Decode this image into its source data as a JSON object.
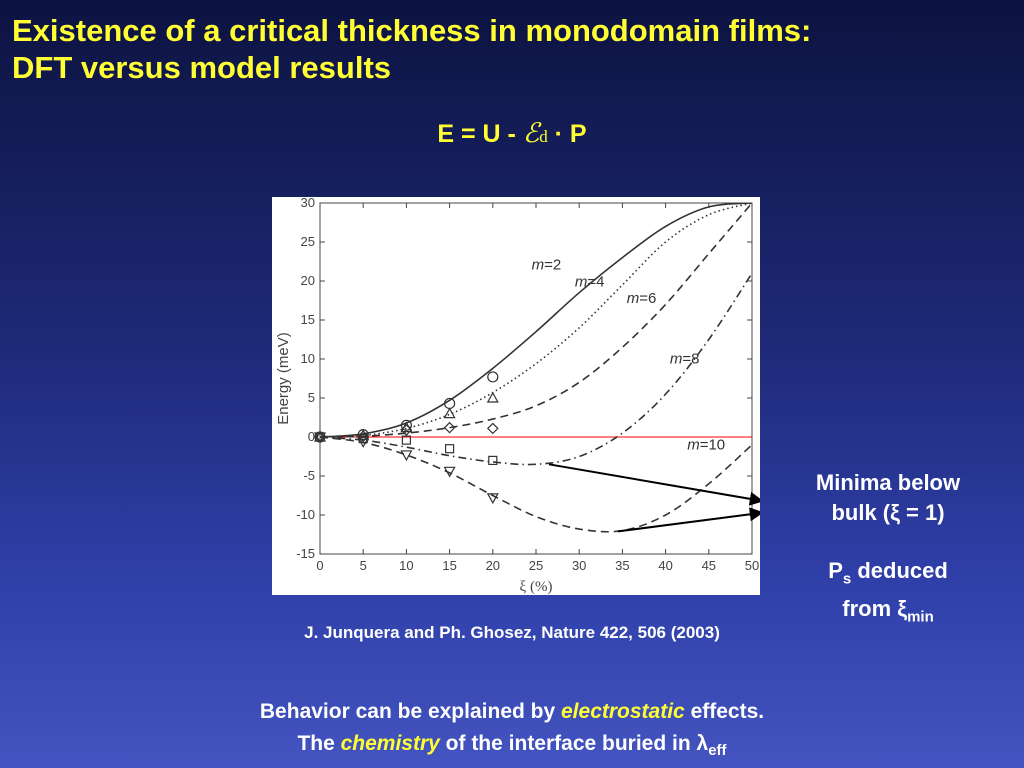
{
  "slide": {
    "title_line1": "Existence of a critical thickness in monodomain films:",
    "title_line2": "DFT versus model results",
    "formula_left": "E = U - ",
    "formula_field": "ℰ",
    "formula_field_sub": "d",
    "formula_right": " · P",
    "annotation_line1": "Minima below",
    "annotation_line2": "bulk (ξ = 1)",
    "ps_prefix": "P",
    "ps_sub": "s",
    "ps_rest": " deduced",
    "from_prefix": "from ξ",
    "from_sub": "min",
    "citation": "J. Junquera and Ph. Ghosez, Nature 422, 506 (2003)",
    "bottom1_pre": "Behavior can be explained by ",
    "bottom1_em": "electrostatic",
    "bottom1_post": " effects.",
    "bottom2_pre": "The ",
    "bottom2_em": "chemistry",
    "bottom2_post": " of the interface buried in λ",
    "bottom2_sub": "eff"
  },
  "colors": {
    "title": "#ffff33",
    "body_text": "#ffffff",
    "zero_line": "#ff0000",
    "curves": "#333333",
    "arrows": "#000000"
  },
  "chart_data": {
    "type": "line",
    "xlabel": "ξ (%)",
    "ylabel": "Energy (meV)",
    "xlim": [
      0,
      50
    ],
    "ylim": [
      -15,
      30
    ],
    "xticks": [
      0,
      5,
      10,
      15,
      20,
      25,
      30,
      35,
      40,
      45,
      50
    ],
    "yticks": [
      -15,
      -10,
      -5,
      0,
      5,
      10,
      15,
      20,
      25,
      30
    ],
    "reference_line_y": 0,
    "series": [
      {
        "name": "m=2",
        "style": "solid",
        "marker": "circle",
        "x": [
          0,
          5,
          10,
          15,
          20,
          25,
          30,
          35,
          40,
          45,
          50
        ],
        "y": [
          0,
          0.4,
          1.8,
          4.7,
          8.8,
          13.5,
          18.5,
          23.0,
          27.0,
          29.5,
          30.0
        ]
      },
      {
        "name": "m=4",
        "style": "dotted",
        "marker": "triangle-up",
        "x": [
          0,
          5,
          10,
          15,
          20,
          25,
          30,
          35,
          40,
          45,
          50
        ],
        "y": [
          0,
          0.2,
          1.1,
          2.9,
          5.7,
          9.4,
          14.0,
          19.5,
          25.0,
          28.5,
          30.0
        ]
      },
      {
        "name": "m=6",
        "style": "dashed",
        "marker": "diamond",
        "x": [
          0,
          5,
          10,
          15,
          20,
          25,
          30,
          35,
          40,
          45,
          50
        ],
        "y": [
          0,
          0.1,
          0.5,
          1.2,
          2.3,
          4.0,
          7.0,
          11.5,
          17.0,
          23.5,
          30.0
        ]
      },
      {
        "name": "m=8",
        "style": "dashdot",
        "marker": "square",
        "x": [
          0,
          5,
          10,
          15,
          20,
          25,
          30,
          35,
          40,
          45,
          50
        ],
        "y": [
          0,
          -0.4,
          -1.3,
          -2.4,
          -3.2,
          -3.5,
          -2.5,
          0.5,
          5.5,
          12.5,
          21.0
        ]
      },
      {
        "name": "m=10",
        "style": "dashed",
        "marker": "triangle-down",
        "x": [
          0,
          5,
          10,
          15,
          20,
          25,
          30,
          35,
          40,
          45,
          50
        ],
        "y": [
          0,
          -0.7,
          -2.3,
          -4.6,
          -7.5,
          -10.2,
          -11.8,
          -12.0,
          -10.0,
          -6.0,
          -1.0
        ]
      }
    ],
    "markers": [
      {
        "series": "m=2",
        "x": [
          0,
          5,
          10,
          15,
          20
        ],
        "y": [
          0,
          0.3,
          1.5,
          4.3,
          7.7
        ]
      },
      {
        "series": "m=4",
        "x": [
          0,
          5,
          10,
          15,
          20
        ],
        "y": [
          0,
          0.2,
          1.2,
          3.0,
          5.0
        ]
      },
      {
        "series": "m=6",
        "x": [
          0,
          5,
          10,
          15,
          20
        ],
        "y": [
          0,
          0.1,
          0.9,
          1.2,
          1.1
        ]
      },
      {
        "series": "m=8",
        "x": [
          0,
          5,
          10,
          15,
          20
        ],
        "y": [
          0,
          -0.2,
          -0.4,
          -1.5,
          -3.0
        ]
      },
      {
        "series": "m=10",
        "x": [
          0,
          5,
          10,
          15,
          20
        ],
        "y": [
          0,
          -0.6,
          -2.3,
          -4.4,
          -7.8
        ]
      }
    ],
    "curve_labels": [
      {
        "text": "m=2",
        "x": 24.5,
        "y": 21.5
      },
      {
        "text": "m=4",
        "x": 29.5,
        "y": 19.3
      },
      {
        "text": "m=6",
        "x": 35.5,
        "y": 17.2
      },
      {
        "text": "m=8",
        "x": 40.5,
        "y": 9.4
      },
      {
        "text": "m=10",
        "x": 42.5,
        "y": -1.6
      }
    ],
    "arrows": [
      {
        "from": [
          26.5,
          -3.5
        ],
        "to": [
          51.2,
          -8.2
        ]
      },
      {
        "from": [
          34.5,
          -12.1
        ],
        "to": [
          51.2,
          -9.7
        ]
      }
    ]
  }
}
